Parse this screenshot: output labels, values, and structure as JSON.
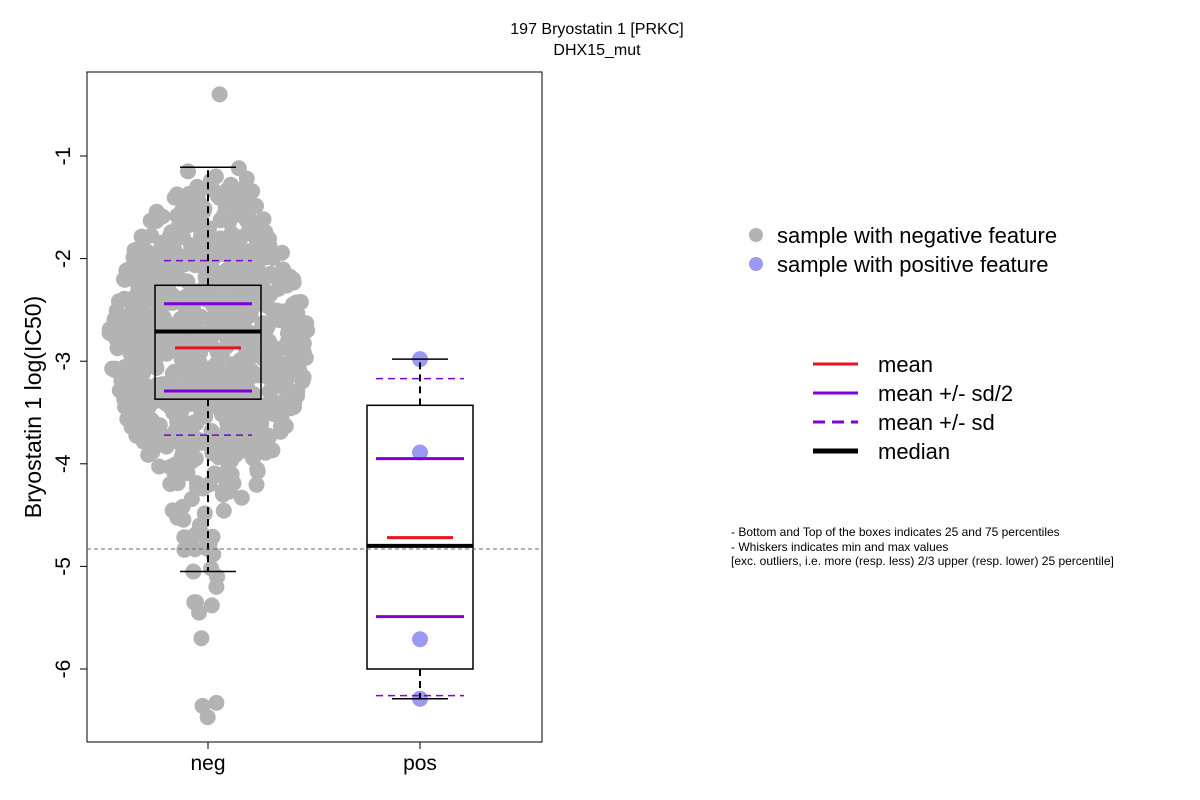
{
  "chart_data": {
    "type": "box",
    "title": "197 Bryostatin 1 [PRKC]",
    "subtitle": "DHX15_mut",
    "ylabel": "Bryostatin 1 log(IC50)",
    "xlabel": "",
    "categories": [
      "neg",
      "pos"
    ],
    "yticks": [
      -1,
      -2,
      -3,
      -4,
      -5,
      -6
    ],
    "ylim": [
      -6.7,
      -0.15
    ],
    "reference_line_y": -4.83,
    "colors": {
      "negative_points": "#b3b3b3",
      "positive_points": "#9a9af2",
      "mean": "#e8141b",
      "sd": "#8000d9",
      "median": "#000000",
      "reference": "#666666"
    },
    "boxes": [
      {
        "category": "neg",
        "q1": -3.37,
        "q3": -2.26,
        "median": -2.71,
        "whisker_low": -5.05,
        "whisker_high": -1.11,
        "mean": -2.87,
        "mean_minus_half_sd": -3.29,
        "mean_plus_half_sd": -2.44,
        "mean_minus_sd": -3.72,
        "mean_plus_sd": -2.02
      },
      {
        "category": "pos",
        "q1": -6.0,
        "q3": -3.43,
        "median": -4.8,
        "whisker_low": -6.29,
        "whisker_high": -2.98,
        "mean": -4.72,
        "mean_minus_half_sd": -5.49,
        "mean_plus_half_sd": -3.95,
        "mean_minus_sd": -6.26,
        "mean_plus_sd": -3.17
      }
    ],
    "series": [
      {
        "category": "neg",
        "point_count": 850,
        "notable_values": [
          -0.4,
          -1.12,
          -1.15,
          -1.2,
          -1.22,
          -1.24,
          -1.28,
          -1.33,
          -1.37,
          -1.45,
          -5.02,
          -5.05,
          -5.1,
          -5.2,
          -5.35,
          -5.35,
          -5.38,
          -5.45,
          -5.7,
          -6.33,
          -6.36,
          -6.47
        ]
      },
      {
        "category": "pos",
        "values": [
          -2.98,
          -3.89,
          -5.71,
          -6.29
        ]
      }
    ],
    "legend_points": [
      {
        "label": "sample with negative feature",
        "color": "#b3b3b3"
      },
      {
        "label": "sample with positive feature",
        "color": "#9a9af2"
      }
    ],
    "legend_lines": [
      {
        "label": "mean",
        "color": "#e8141b",
        "style": "solid"
      },
      {
        "label": "mean +/- sd/2",
        "color": "#8000d9",
        "style": "solid"
      },
      {
        "label": "mean +/- sd",
        "color": "#8000d9",
        "style": "dashed"
      },
      {
        "label": "median",
        "color": "#000000",
        "style": "solid-thick"
      }
    ],
    "notes": [
      "- Bottom and Top of the boxes indicates 25 and 75 percentiles",
      "- Whiskers indicates min and max values",
      "[exc. outliers, i.e. more (resp. less) 2/3 upper (resp. lower) 25 percentile]"
    ]
  }
}
